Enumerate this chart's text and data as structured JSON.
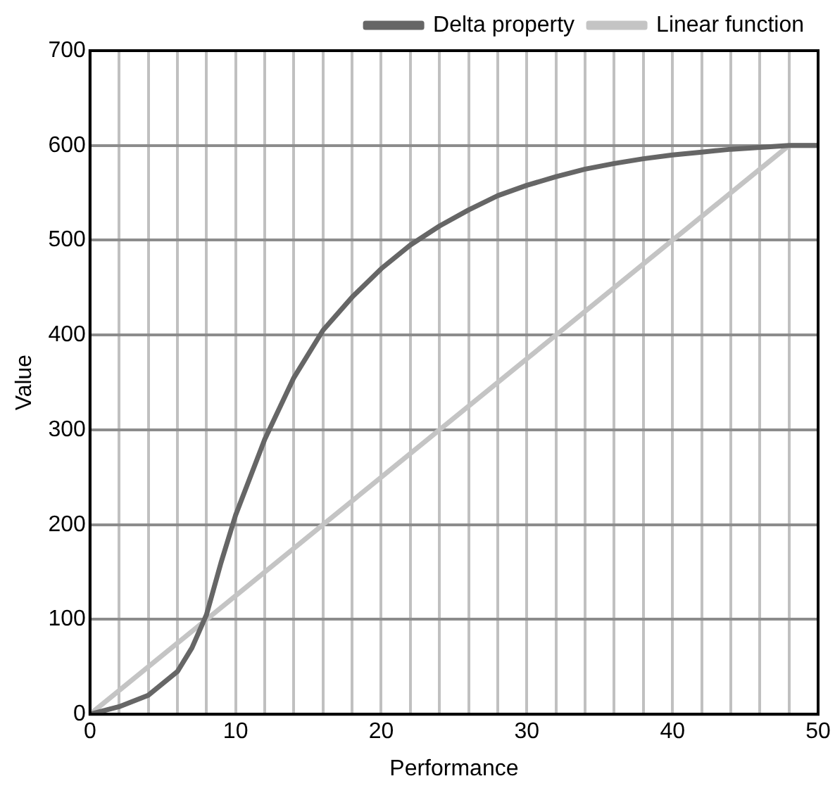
{
  "chart_data": {
    "type": "line",
    "xlabel": "Performance",
    "ylabel": "Value",
    "xlim": [
      0,
      50
    ],
    "ylim": [
      0,
      700
    ],
    "xticks": [
      0,
      {
        "value": 2,
        "label": null
      },
      {
        "value": 4,
        "label": null
      },
      {
        "value": 6,
        "label": null
      },
      {
        "value": 8,
        "label": null
      },
      10,
      {
        "value": 12,
        "label": null
      },
      {
        "value": 14,
        "label": null
      },
      {
        "value": 16,
        "label": null
      },
      {
        "value": 18,
        "label": null
      },
      20,
      {
        "value": 22,
        "label": null
      },
      {
        "value": 24,
        "label": null
      },
      {
        "value": 26,
        "label": null
      },
      {
        "value": 28,
        "label": null
      },
      30,
      {
        "value": 32,
        "label": null
      },
      {
        "value": 34,
        "label": null
      },
      {
        "value": 36,
        "label": null
      },
      {
        "value": 38,
        "label": null
      },
      40,
      {
        "value": 42,
        "label": null
      },
      {
        "value": 44,
        "label": null
      },
      {
        "value": 46,
        "label": null
      },
      {
        "value": 48,
        "label": null
      },
      50
    ],
    "yticks": [
      0,
      100,
      200,
      300,
      400,
      500,
      600,
      700
    ],
    "grid": true,
    "legend": "top right",
    "marker": "none",
    "line_style": "solid",
    "series": [
      {
        "name": "Delta property",
        "color": "#666666",
        "x": [
          0,
          2,
          4,
          6,
          7,
          8,
          9,
          10,
          12,
          14,
          16,
          18,
          20,
          22,
          24,
          26,
          28,
          30,
          32,
          34,
          36,
          38,
          40,
          42,
          44,
          46,
          48,
          50
        ],
        "values": [
          0,
          8,
          20,
          45,
          70,
          105,
          160,
          210,
          290,
          355,
          405,
          440,
          470,
          495,
          515,
          532,
          547,
          558,
          567,
          575,
          581,
          586,
          590,
          593,
          596,
          598,
          600,
          600
        ]
      },
      {
        "name": "Linear function",
        "color": "#c4c4c4",
        "x": [
          0,
          48,
          50
        ],
        "values": [
          0,
          600,
          600
        ]
      }
    ]
  }
}
